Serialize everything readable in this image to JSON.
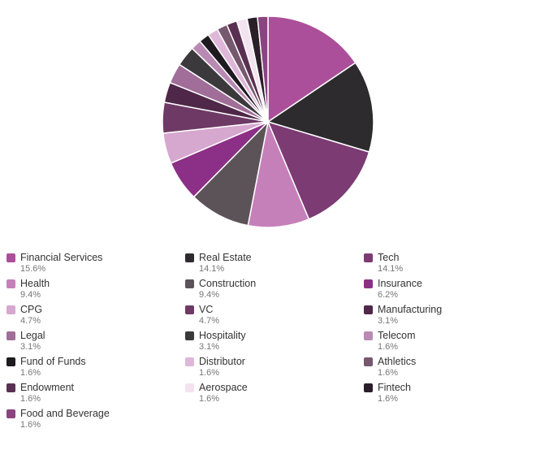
{
  "chart_data": {
    "type": "pie",
    "title": "",
    "legend_placement": "bottom",
    "slices": [
      {
        "label": "Financial Services",
        "value": 15.6,
        "display": "15.6%",
        "color": "#ac4f9a"
      },
      {
        "label": "Real Estate",
        "value": 14.1,
        "display": "14.1%",
        "color": "#2e2b2f"
      },
      {
        "label": "Tech",
        "value": 14.1,
        "display": "14.1%",
        "color": "#7c3b72"
      },
      {
        "label": "Health",
        "value": 9.4,
        "display": "9.4%",
        "color": "#c580ba"
      },
      {
        "label": "Construction",
        "value": 9.4,
        "display": "9.4%",
        "color": "#5c5358"
      },
      {
        "label": "Insurance",
        "value": 6.2,
        "display": "6.2%",
        "color": "#8c2f86"
      },
      {
        "label": "CPG",
        "value": 4.7,
        "display": "4.7%",
        "color": "#d6a7cf"
      },
      {
        "label": "VC",
        "value": 4.7,
        "display": "4.7%",
        "color": "#6e3a65"
      },
      {
        "label": "Manufacturing",
        "value": 3.1,
        "display": "3.1%",
        "color": "#4f2748"
      },
      {
        "label": "Legal",
        "value": 3.1,
        "display": "3.1%",
        "color": "#a06e98"
      },
      {
        "label": "Hospitality",
        "value": 3.1,
        "display": "3.1%",
        "color": "#3b393c"
      },
      {
        "label": "Telecom",
        "value": 1.6,
        "display": "1.6%",
        "color": "#b98ab3"
      },
      {
        "label": "Fund of Funds",
        "value": 1.6,
        "display": "1.6%",
        "color": "#1e1a1f"
      },
      {
        "label": "Distributor",
        "value": 1.6,
        "display": "1.6%",
        "color": "#dfb8d9"
      },
      {
        "label": "Athletics",
        "value": 1.6,
        "display": "1.6%",
        "color": "#76586f"
      },
      {
        "label": "Endowment",
        "value": 1.6,
        "display": "1.6%",
        "color": "#5a3052"
      },
      {
        "label": "Aerospace",
        "value": 1.6,
        "display": "1.6%",
        "color": "#f3e3f0"
      },
      {
        "label": "Fintech",
        "value": 1.6,
        "display": "1.6%",
        "color": "#2a1e28"
      },
      {
        "label": "Food and Beverage",
        "value": 1.6,
        "display": "1.6%",
        "color": "#8a4480"
      }
    ]
  }
}
